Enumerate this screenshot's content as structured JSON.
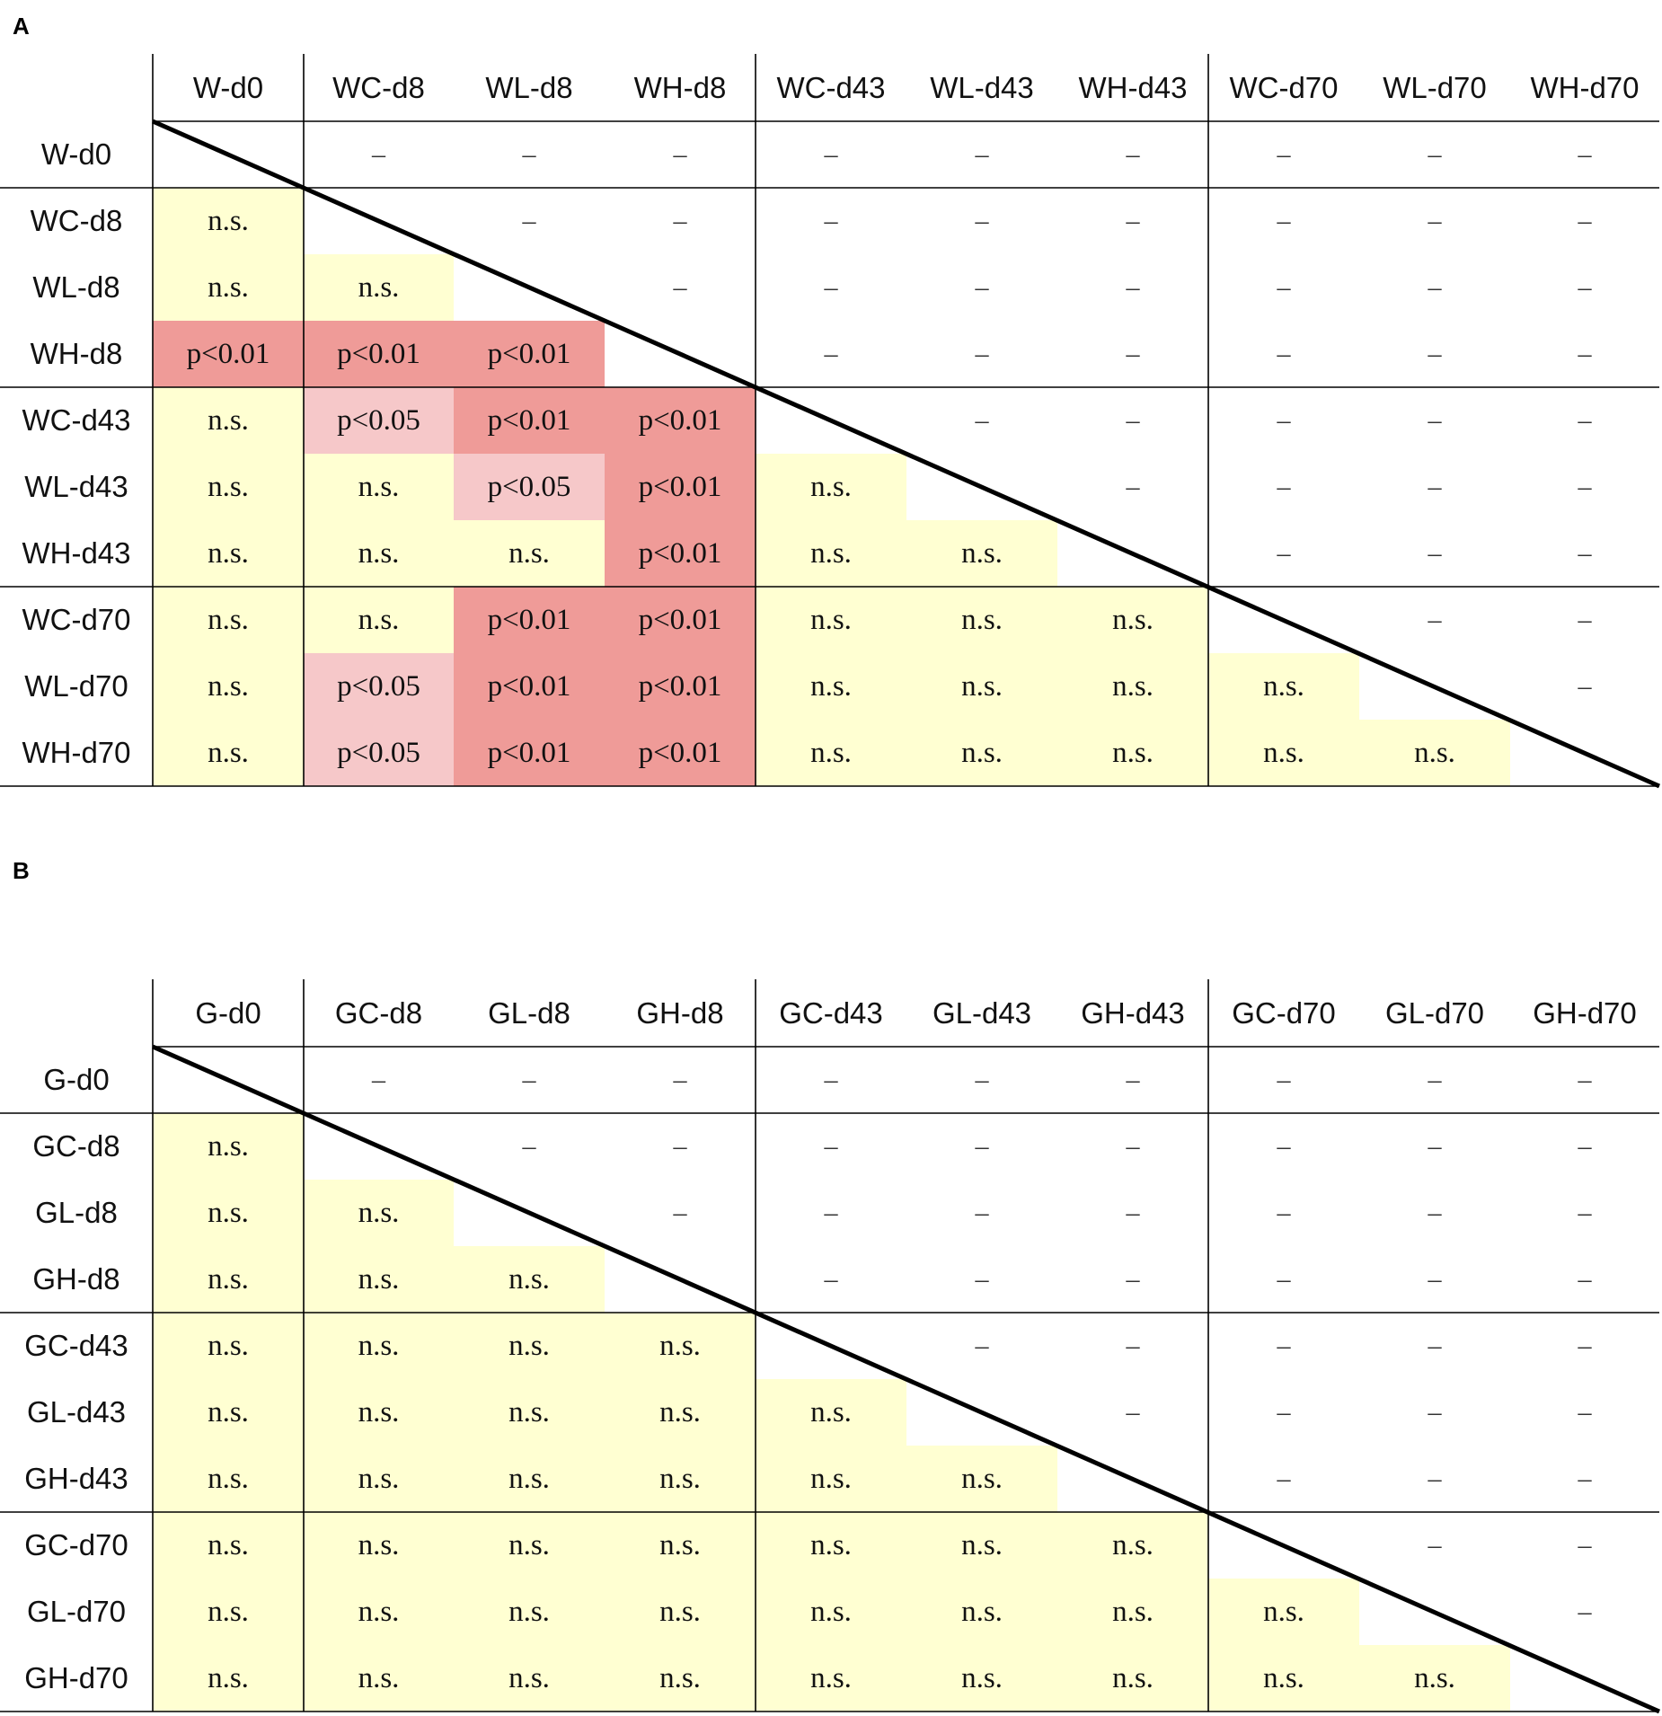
{
  "figure": {
    "colors": {
      "ns": "#ffffd2",
      "p005": "#f6c8c9",
      "p001": "#ef9b98",
      "line": "#000000"
    },
    "panels": [
      {
        "label": "A",
        "columns": [
          "W-d0",
          "WC-d8",
          "WL-d8",
          "WH-d8",
          "WC-d43",
          "WL-d43",
          "WH-d43",
          "WC-d70",
          "WL-d70",
          "WH-d70"
        ],
        "rows": [
          "W-d0",
          "WC-d8",
          "WL-d8",
          "WH-d8",
          "WC-d43",
          "WL-d43",
          "WH-d43",
          "WC-d70",
          "WL-d70",
          "WH-d70"
        ],
        "cells": [
          [
            "",
            "–",
            "–",
            "–",
            "–",
            "–",
            "–",
            "–",
            "–",
            "–"
          ],
          [
            "n.s.",
            "",
            "–",
            "–",
            "–",
            "–",
            "–",
            "–",
            "–",
            "–"
          ],
          [
            "n.s.",
            "n.s.",
            "",
            "–",
            "–",
            "–",
            "–",
            "–",
            "–",
            "–"
          ],
          [
            "p<0.01",
            "p<0.01",
            "p<0.01",
            "",
            "–",
            "–",
            "–",
            "–",
            "–",
            "–"
          ],
          [
            "n.s.",
            "p<0.05",
            "p<0.01",
            "p<0.01",
            "",
            "–",
            "–",
            "–",
            "–",
            "–"
          ],
          [
            "n.s.",
            "n.s.",
            "p<0.05",
            "p<0.01",
            "n.s.",
            "",
            "–",
            "–",
            "–",
            "–"
          ],
          [
            "n.s.",
            "n.s.",
            "n.s.",
            "p<0.01",
            "n.s.",
            "n.s.",
            "",
            "–",
            "–",
            "–"
          ],
          [
            "n.s.",
            "n.s.",
            "p<0.01",
            "p<0.01",
            "n.s.",
            "n.s.",
            "n.s.",
            "",
            "–",
            "–"
          ],
          [
            "n.s.",
            "p<0.05",
            "p<0.01",
            "p<0.01",
            "n.s.",
            "n.s.",
            "n.s.",
            "n.s.",
            "",
            "–"
          ],
          [
            "n.s.",
            "p<0.05",
            "p<0.01",
            "p<0.01",
            "n.s.",
            "n.s.",
            "n.s.",
            "n.s.",
            "n.s.",
            ""
          ]
        ]
      },
      {
        "label": "B",
        "columns": [
          "G-d0",
          "GC-d8",
          "GL-d8",
          "GH-d8",
          "GC-d43",
          "GL-d43",
          "GH-d43",
          "GC-d70",
          "GL-d70",
          "GH-d70"
        ],
        "rows": [
          "G-d0",
          "GC-d8",
          "GL-d8",
          "GH-d8",
          "GC-d43",
          "GL-d43",
          "GH-d43",
          "GC-d70",
          "GL-d70",
          "GH-d70"
        ],
        "cells": [
          [
            "",
            "–",
            "–",
            "–",
            "–",
            "–",
            "–",
            "–",
            "–",
            "–"
          ],
          [
            "n.s.",
            "",
            "–",
            "–",
            "–",
            "–",
            "–",
            "–",
            "–",
            "–"
          ],
          [
            "n.s.",
            "n.s.",
            "",
            "–",
            "–",
            "–",
            "–",
            "–",
            "–",
            "–"
          ],
          [
            "n.s.",
            "n.s.",
            "n.s.",
            "",
            "–",
            "–",
            "–",
            "–",
            "–",
            "–"
          ],
          [
            "n.s.",
            "n.s.",
            "n.s.",
            "n.s.",
            "",
            "–",
            "–",
            "–",
            "–",
            "–"
          ],
          [
            "n.s.",
            "n.s.",
            "n.s.",
            "n.s.",
            "n.s.",
            "",
            "–",
            "–",
            "–",
            "–"
          ],
          [
            "n.s.",
            "n.s.",
            "n.s.",
            "n.s.",
            "n.s.",
            "n.s.",
            "",
            "–",
            "–",
            "–"
          ],
          [
            "n.s.",
            "n.s.",
            "n.s.",
            "n.s.",
            "n.s.",
            "n.s.",
            "n.s.",
            "",
            "–",
            "–"
          ],
          [
            "n.s.",
            "n.s.",
            "n.s.",
            "n.s.",
            "n.s.",
            "n.s.",
            "n.s.",
            "n.s.",
            "",
            "–"
          ],
          [
            "n.s.",
            "n.s.",
            "n.s.",
            "n.s.",
            "n.s.",
            "n.s.",
            "n.s.",
            "n.s.",
            "n.s.",
            ""
          ]
        ]
      }
    ]
  }
}
